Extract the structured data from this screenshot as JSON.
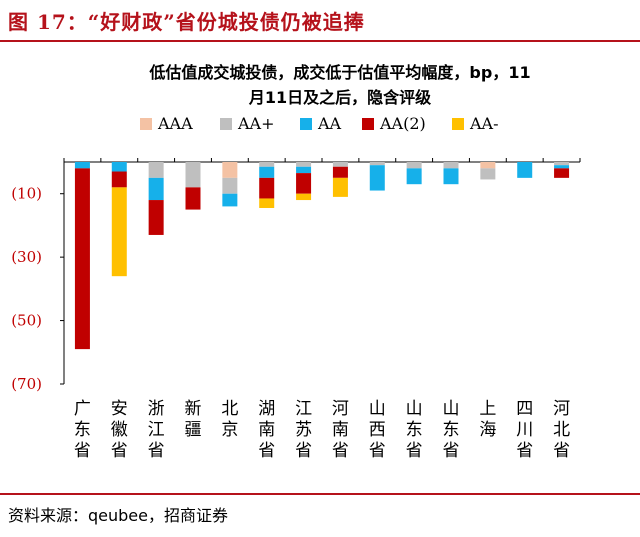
{
  "figure_label": "图 17：“好财政”省份城投债仍被追捧",
  "source": "资料来源：qeubee，招商证券",
  "chart_data": {
    "type": "bar",
    "stacked": true,
    "title_line1": "低估值成交城投债，成交低于估值平均幅度，bp，11",
    "title_line2": "月11日及之后，隐含评级",
    "categories": [
      "广东省",
      "安徽省",
      "浙江省",
      "新疆",
      "北京",
      "湖南省",
      "江苏省",
      "河南省",
      "山西省",
      "山东省",
      "山东省",
      "上海",
      "四川省",
      "河北省"
    ],
    "category_labels": [
      "广\n东\n省",
      "安\n徽\n省",
      "浙\n江\n省",
      "新\n疆",
      "北\n京",
      "湖\n南\n省",
      "江\n苏\n省",
      "河\n南\n省",
      "山\n西\n省",
      "山\n东\n省",
      "山\n东\n省",
      "上\n海",
      "四\n川\n省",
      "河\n北\n省"
    ],
    "series": [
      {
        "name": "AAA",
        "color": "#f4c2a4",
        "values": [
          0,
          0,
          0,
          0,
          -5,
          0,
          0,
          0,
          0,
          0,
          0,
          -2,
          0,
          0
        ]
      },
      {
        "name": "AA+",
        "color": "#bfbfbf",
        "values": [
          0,
          0,
          -5,
          -8,
          -5,
          -1.5,
          -1.5,
          -1.5,
          -1,
          -2,
          -2,
          -3.5,
          0,
          -1
        ]
      },
      {
        "name": "AA",
        "color": "#16b0ea",
        "values": [
          -2,
          -3,
          -7,
          0,
          -4,
          -3.5,
          -2,
          0,
          -8,
          -5,
          -5,
          0,
          -5,
          -1
        ]
      },
      {
        "name": "AA(2)",
        "color": "#c00000",
        "values": [
          -57,
          -5,
          -11,
          -7,
          0,
          -6.5,
          -6.5,
          -3.5,
          0,
          0,
          0,
          0,
          0,
          -3
        ]
      },
      {
        "name": "AA-",
        "color": "#ffc000",
        "values": [
          0,
          -28,
          0,
          0,
          0,
          -3,
          -2,
          -6,
          0,
          0,
          0,
          0,
          0,
          0
        ]
      }
    ],
    "ylim": [
      -70,
      0
    ],
    "yticks": [
      -10,
      -30,
      -50,
      -70
    ],
    "ytick_labels": [
      "(10)",
      "(30)",
      "(50)",
      "(70)"
    ],
    "legend_position": "top",
    "grid": false
  }
}
